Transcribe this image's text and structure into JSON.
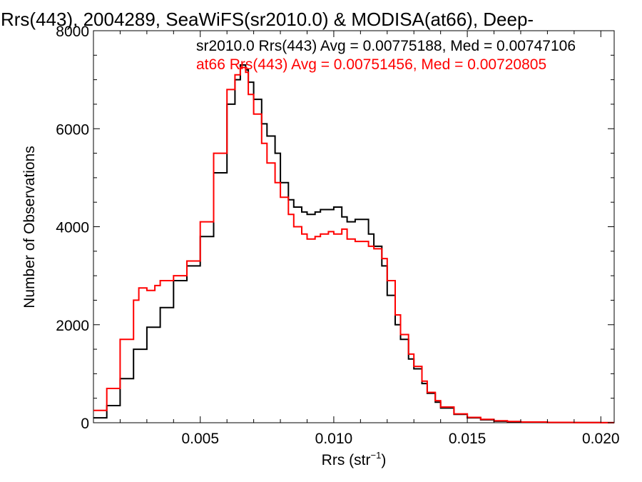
{
  "chart_data": {
    "type": "line",
    "title": "Rrs(443), 2004289, SeaWiFS(sr2010.0) & MODISA(at66), Deep-",
    "xlabel": "Rrs (str",
    "xlabel_sup": "−1",
    "xlabel_tail": ")",
    "ylabel": "Number of Observations",
    "xlim": [
      0.001,
      0.0205
    ],
    "ylim": [
      0,
      8000
    ],
    "xticks": [
      {
        "value": 0.005,
        "label": "0.005"
      },
      {
        "value": 0.01,
        "label": "0.010"
      },
      {
        "value": 0.015,
        "label": "0.015"
      },
      {
        "value": 0.02,
        "label": "0.020"
      }
    ],
    "yticks": [
      {
        "value": 0,
        "label": "0"
      },
      {
        "value": 2000,
        "label": "2000"
      },
      {
        "value": 4000,
        "label": "4000"
      },
      {
        "value": 6000,
        "label": "6000"
      },
      {
        "value": 8000,
        "label": "8000"
      }
    ],
    "grid": false,
    "annotations": [
      {
        "text": "sr2010.0 Rrs(443) Avg = 0.00775188, Med = 0.00747106",
        "color": "#000000"
      },
      {
        "text": "at66 Rrs(443) Avg = 0.00751456, Med = 0.00720805",
        "color": "#ff0000"
      }
    ],
    "series": [
      {
        "color": "#000000",
        "x": [
          0.001,
          0.0015,
          0.002,
          0.0025,
          0.003,
          0.0035,
          0.004,
          0.0045,
          0.005,
          0.0055,
          0.006,
          0.0063,
          0.0065,
          0.0067,
          0.0068,
          0.007,
          0.0073,
          0.0075,
          0.0078,
          0.008,
          0.0083,
          0.0085,
          0.0088,
          0.009,
          0.0093,
          0.0095,
          0.0098,
          0.01,
          0.0103,
          0.0105,
          0.0108,
          0.011,
          0.0113,
          0.0115,
          0.0118,
          0.012,
          0.0123,
          0.0125,
          0.0128,
          0.013,
          0.0133,
          0.0135,
          0.0138,
          0.014,
          0.0145,
          0.015,
          0.0155,
          0.016,
          0.0165,
          0.017,
          0.018,
          0.019,
          0.02,
          0.0205
        ],
        "y": [
          100,
          350,
          900,
          1500,
          1950,
          2350,
          2900,
          3200,
          3800,
          5100,
          6500,
          7000,
          7300,
          7200,
          6950,
          6600,
          6100,
          5850,
          5500,
          4900,
          4550,
          4400,
          4300,
          4250,
          4300,
          4350,
          4350,
          4400,
          4200,
          4100,
          4150,
          4150,
          3850,
          3600,
          3200,
          2600,
          2000,
          1700,
          1300,
          1100,
          800,
          600,
          420,
          300,
          170,
          100,
          60,
          30,
          20,
          10,
          5,
          3,
          2,
          1
        ]
      },
      {
        "color": "#ff0000",
        "x": [
          0.001,
          0.0015,
          0.002,
          0.0025,
          0.0027,
          0.003,
          0.0033,
          0.0035,
          0.004,
          0.0045,
          0.005,
          0.0055,
          0.006,
          0.0063,
          0.0065,
          0.0067,
          0.0068,
          0.007,
          0.0073,
          0.0075,
          0.0078,
          0.008,
          0.0083,
          0.0085,
          0.0088,
          0.009,
          0.0093,
          0.0095,
          0.0098,
          0.01,
          0.0103,
          0.0105,
          0.0108,
          0.011,
          0.0113,
          0.0115,
          0.0118,
          0.012,
          0.0123,
          0.0125,
          0.0128,
          0.013,
          0.0133,
          0.0135,
          0.0138,
          0.014,
          0.0145,
          0.015,
          0.0155,
          0.016,
          0.0165,
          0.017,
          0.018,
          0.019,
          0.02,
          0.0205
        ],
        "y": [
          250,
          700,
          1700,
          2500,
          2750,
          2700,
          2800,
          2900,
          3000,
          3300,
          4100,
          5500,
          6800,
          7100,
          7250,
          7150,
          6700,
          6300,
          5700,
          5300,
          4900,
          4600,
          4250,
          4000,
          3850,
          3750,
          3800,
          3850,
          3900,
          3850,
          3950,
          3750,
          3700,
          3700,
          3600,
          3550,
          3350,
          2900,
          2200,
          1800,
          1400,
          1150,
          850,
          620,
          450,
          320,
          180,
          110,
          70,
          40,
          25,
          15,
          8,
          4,
          2,
          1
        ]
      }
    ]
  }
}
